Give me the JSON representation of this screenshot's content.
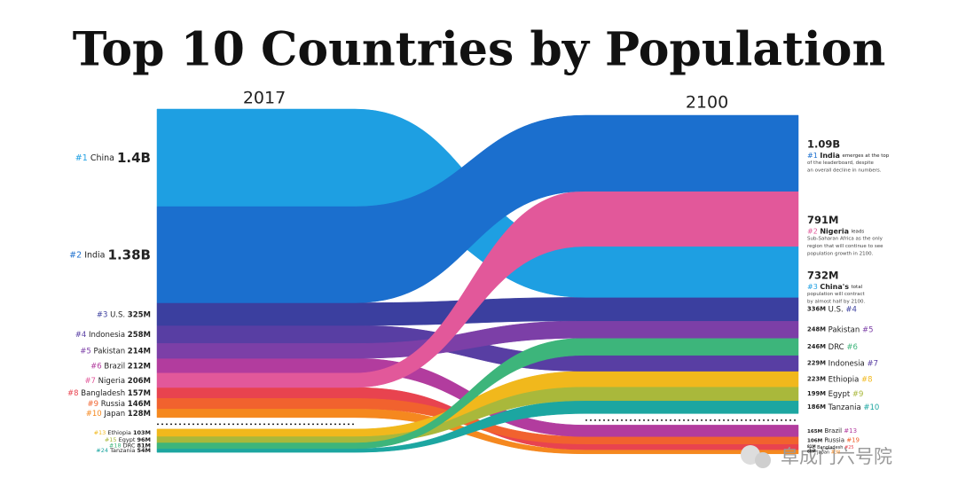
{
  "chart_data": {
    "type": "bump",
    "title": "Top 10 Countries by Population",
    "start_label": "2017",
    "end_label": "2100",
    "top_n": 10,
    "series": [
      {
        "name": "China",
        "color": "#1e9fe2",
        "values": [
          1400,
          732
        ],
        "value_labels": [
          "1.4B",
          "732M"
        ],
        "ranks": [
          1,
          3
        ],
        "rank_labels": [
          "#1",
          "#3"
        ],
        "note": {
          "name": "China's",
          "lines": [
            "total",
            "population will contract",
            "by almost half by 2100."
          ]
        }
      },
      {
        "name": "India",
        "color": "#1b6fce",
        "values": [
          1380,
          1090
        ],
        "value_labels": [
          "1.38B",
          "1.09B"
        ],
        "ranks": [
          2,
          1
        ],
        "rank_labels": [
          "#2",
          "#1"
        ],
        "note": {
          "name": "India",
          "lines": [
            "emerges at the top",
            "of the leaderboard, despite",
            "an overall decline in numbers."
          ]
        }
      },
      {
        "name": "U.S.",
        "color": "#3b3f9f",
        "values": [
          325,
          336
        ],
        "value_labels": [
          "325M",
          "336M"
        ],
        "ranks": [
          3,
          4
        ],
        "rank_labels": [
          "#3",
          "#4"
        ]
      },
      {
        "name": "Indonesia",
        "color": "#583ea3",
        "values": [
          258,
          229
        ],
        "value_labels": [
          "258M",
          "229M"
        ],
        "ranks": [
          4,
          7
        ],
        "rank_labels": [
          "#4",
          "#7"
        ]
      },
      {
        "name": "Pakistan",
        "color": "#7c3fa7",
        "values": [
          214,
          248
        ],
        "value_labels": [
          "214M",
          "248M"
        ],
        "ranks": [
          5,
          5
        ],
        "rank_labels": [
          "#5",
          "#5"
        ]
      },
      {
        "name": "Brazil",
        "color": "#b23c9e",
        "values": [
          212,
          165
        ],
        "value_labels": [
          "212M",
          "165M"
        ],
        "ranks": [
          6,
          13
        ],
        "rank_labels": [
          "#6",
          "#13"
        ]
      },
      {
        "name": "Nigeria",
        "color": "#e2589a",
        "values": [
          206,
          791
        ],
        "value_labels": [
          "206M",
          "791M"
        ],
        "ranks": [
          7,
          2
        ],
        "rank_labels": [
          "#7",
          "#2"
        ],
        "note": {
          "name": "Nigeria",
          "lines": [
            "leads",
            "Sub-Saharan Africa as the only",
            "region that will continue to see",
            "population growth in 2100."
          ]
        }
      },
      {
        "name": "Bangladesh",
        "color": "#e8434f",
        "values": [
          157,
          81
        ],
        "value_labels": [
          "157M",
          "81M"
        ],
        "ranks": [
          8,
          25
        ],
        "rank_labels": [
          "#8",
          "#25"
        ]
      },
      {
        "name": "Russia",
        "color": "#f1622e",
        "values": [
          146,
          106
        ],
        "value_labels": [
          "146M",
          "106M"
        ],
        "ranks": [
          9,
          19
        ],
        "rank_labels": [
          "#9",
          "#19"
        ]
      },
      {
        "name": "Japan",
        "color": "#f5881f",
        "values": [
          128,
          60
        ],
        "value_labels": [
          "128M",
          "60M"
        ],
        "ranks": [
          10,
          38
        ],
        "rank_labels": [
          "#10",
          "#38"
        ]
      },
      {
        "name": "Ethiopia",
        "color": "#f1b81c",
        "values": [
          103,
          223
        ],
        "value_labels": [
          "103M",
          "223M"
        ],
        "ranks": [
          13,
          8
        ],
        "rank_labels": [
          "#13",
          "#8"
        ]
      },
      {
        "name": "Egypt",
        "color": "#a9b83b",
        "values": [
          96,
          199
        ],
        "value_labels": [
          "96M",
          "199M"
        ],
        "ranks": [
          15,
          9
        ],
        "rank_labels": [
          "#15",
          "#9"
        ]
      },
      {
        "name": "DRC",
        "color": "#3db57b",
        "values": [
          81,
          246
        ],
        "value_labels": [
          "81M",
          "246M"
        ],
        "ranks": [
          18,
          6
        ],
        "rank_labels": [
          "#18",
          "#6"
        ]
      },
      {
        "name": "Tanzania",
        "color": "#1ca6a1",
        "values": [
          54,
          186
        ],
        "value_labels": [
          "54M",
          "186M"
        ],
        "ranks": [
          24,
          10
        ],
        "rank_labels": [
          "#24",
          "#10"
        ]
      }
    ],
    "watermark": "阜成门六号院"
  }
}
